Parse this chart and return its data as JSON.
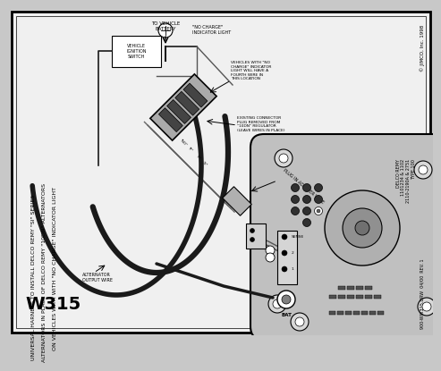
{
  "bg_color": "#c8c8c8",
  "border_color": "#000000",
  "title": "W315",
  "subtitle_lines": [
    "UNIVERSAL HARNESS TO INSTALL DELCO REMY \"SI\" SERIES",
    "ALTERNATORS IN PLACE OF DELCO REMY \"10DN\" ALTERNATORS",
    "ON VEHICLES WITH WITH \"NO CHARGE\" INDICATOR LIGHT"
  ],
  "copyright": "© JIMCO, Inc. 1998",
  "part_number": "900-WW315.DRW  04/00  REV. 1",
  "delco_info": "DELCO REMY\n1101234 & 1102\n2110-2190A & 2751\nTYPE 100",
  "bg_white": "#f0f0f0",
  "wire_black": "#1a1a1a",
  "connector_gray": "#888888",
  "connector_dark": "#555555",
  "alt_body": "#c0c0c0",
  "alt_light": "#d8d8d8"
}
